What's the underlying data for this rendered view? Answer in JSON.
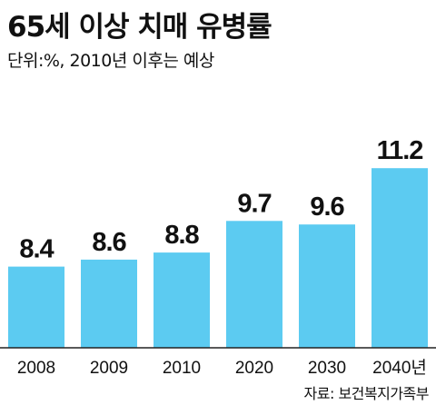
{
  "header": {
    "title": "65세 이상 치매 유병률",
    "subtitle": "단위:%,  2010년 이후는 예상"
  },
  "footer": {
    "source": "자료: 보건복지가족부"
  },
  "colors": {
    "bar": "#5ccbf1",
    "axis": "#222222"
  },
  "chart_data": {
    "type": "bar",
    "title": "65세 이상 치매 유병률",
    "categories": [
      "2008",
      "2009",
      "2010",
      "2020",
      "2030",
      "2040년"
    ],
    "values": [
      8.4,
      8.6,
      8.8,
      9.7,
      9.6,
      11.2
    ],
    "value_labels": [
      "8.4",
      "8.6",
      "8.8",
      "9.7",
      "9.6",
      "11.2"
    ],
    "unit": "%",
    "xlabel": "",
    "ylabel": "",
    "grid": false,
    "legend": "none"
  }
}
